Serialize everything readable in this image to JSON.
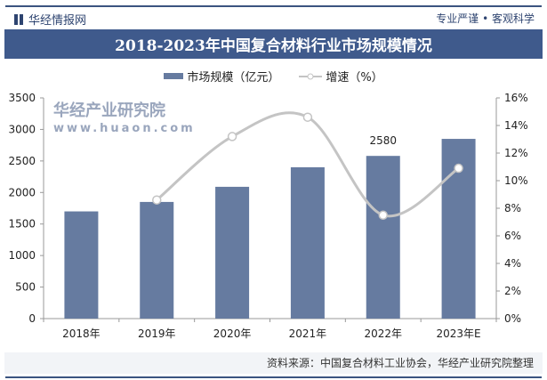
{
  "header": {
    "brand": "华经情报网",
    "slogan": "专业严谨 • 客观科学"
  },
  "chart_data": {
    "type": "bar+line",
    "title": "2018-2023年中国复合材料行业市场规模情况",
    "categories": [
      "2018年",
      "2019年",
      "2020年",
      "2021年",
      "2022年",
      "2023年E"
    ],
    "series": [
      {
        "name": "市场规模（亿元）",
        "type": "bar",
        "axis": "left",
        "values": [
          1700,
          1850,
          2090,
          2400,
          2580,
          2850
        ],
        "color": "#667ba0"
      },
      {
        "name": "增速（%）",
        "type": "line",
        "axis": "right",
        "values": [
          null,
          8.6,
          13.2,
          14.6,
          7.5,
          10.9
        ],
        "color": "#c4c4c4"
      }
    ],
    "data_labels": [
      {
        "category": "2022年",
        "text": "2580"
      }
    ],
    "left_axis": {
      "ylim": [
        0,
        3500
      ],
      "ticks": [
        "0",
        "500",
        "1000",
        "1500",
        "2000",
        "2500",
        "3000",
        "3500"
      ]
    },
    "right_axis": {
      "ylim": [
        0,
        16
      ],
      "ticks": [
        "0%",
        "2%",
        "4%",
        "6%",
        "8%",
        "10%",
        "12%",
        "14%",
        "16%"
      ]
    },
    "grid": false,
    "legend": "top"
  },
  "footer": {
    "source": "资料来源：中国复合材料工业协会，华经产业研究院整理"
  },
  "watermark": {
    "name": "华经产业研究院",
    "url": "www.huaon.com"
  }
}
